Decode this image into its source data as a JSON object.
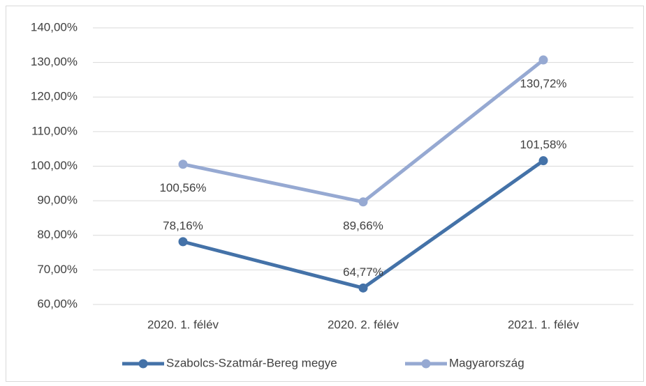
{
  "chart_data": {
    "type": "line",
    "categories": [
      "2020. 1. félév",
      "2020. 2. félév",
      "2021. 1. félév"
    ],
    "series": [
      {
        "name": "Szabolcs-Szatmár-Bereg megye",
        "color": "#4472a8",
        "values": [
          78.16,
          64.77,
          101.58
        ],
        "value_labels": [
          "78,16%",
          "64,77%",
          "101,58%"
        ]
      },
      {
        "name": "Magyarország",
        "color": "#96a9d2",
        "values": [
          100.56,
          89.66,
          130.72
        ],
        "value_labels": [
          "100,56%",
          "89,66%",
          "130,72%"
        ]
      }
    ],
    "ylim": [
      60,
      140
    ],
    "yticks": [
      {
        "value": 60,
        "label": "60,00%"
      },
      {
        "value": 70,
        "label": "70,00%"
      },
      {
        "value": 80,
        "label": "80,00%"
      },
      {
        "value": 90,
        "label": "90,00%"
      },
      {
        "value": 100,
        "label": "100,00%"
      },
      {
        "value": 110,
        "label": "110,00%"
      },
      {
        "value": 120,
        "label": "120,00%"
      },
      {
        "value": 130,
        "label": "130,00%"
      },
      {
        "value": 140,
        "label": "140,00%"
      }
    ],
    "grid": true,
    "legend": "bottom"
  }
}
